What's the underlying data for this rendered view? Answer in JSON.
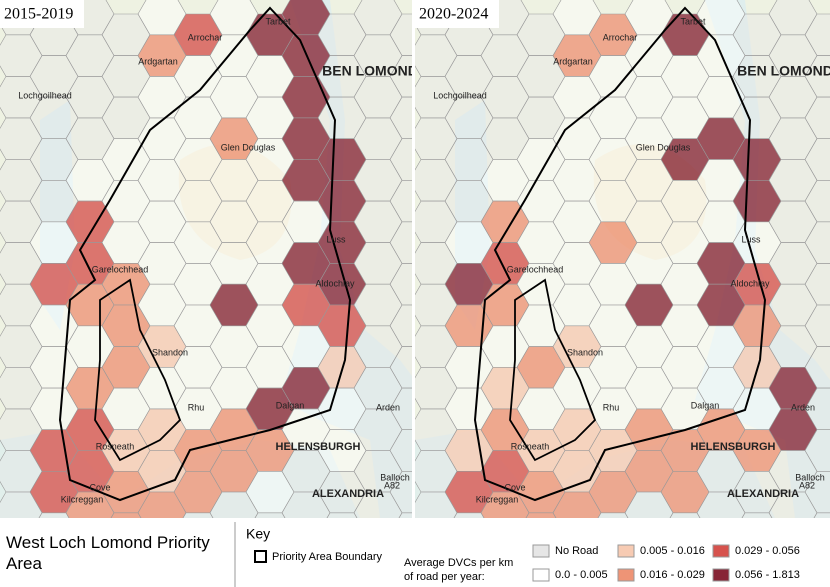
{
  "title": "West Loch Lomond Priority Area",
  "key": {
    "heading": "Key",
    "boundary_label": "Priority Area Boundary",
    "measure_label": "Average DVCs per km of road per year:",
    "classes": [
      {
        "label": "No Road",
        "color": "#e6e6e6"
      },
      {
        "label": "0.0 - 0.005",
        "color": "#ffffff"
      },
      {
        "label": "0.005 - 0.016",
        "color": "#f7cbb3"
      },
      {
        "label": "0.016 - 0.029",
        "color": "#ee9476"
      },
      {
        "label": "0.029 - 0.056",
        "color": "#d6524d"
      },
      {
        "label": "0.056 - 1.813",
        "color": "#872536"
      }
    ]
  },
  "places": [
    "BEN LOMOND",
    "Tarbet",
    "Arrochar",
    "Ardgartan",
    "Lochgoilhead",
    "Glen Douglas",
    "Luss",
    "Garelochhead",
    "Aldochlay",
    "Shandon",
    "Rhu",
    "Dalgan",
    "Rosneath",
    "Cove",
    "Kilcreggan",
    "HELENSBURGH",
    "ALEXANDRIA",
    "Balloch",
    "Arden",
    "A82"
  ],
  "panels": [
    {
      "title": "2015-2019",
      "hexes": [
        [
          0,
          0,
          0,
          0,
          1,
          4,
          1,
          5,
          5,
          0,
          0,
          0
        ],
        [
          0,
          0,
          0,
          0,
          3,
          1,
          1,
          1,
          5,
          0,
          0,
          0
        ],
        [
          0,
          0,
          0,
          0,
          1,
          1,
          1,
          1,
          5,
          0,
          0,
          0
        ],
        [
          0,
          0,
          0,
          1,
          1,
          1,
          3,
          1,
          5,
          5,
          0,
          0
        ],
        [
          0,
          0,
          1,
          1,
          1,
          1,
          1,
          1,
          5,
          5,
          0,
          0
        ],
        [
          0,
          1,
          4,
          1,
          1,
          1,
          1,
          1,
          1,
          5,
          0,
          0
        ],
        [
          0,
          4,
          4,
          3,
          1,
          1,
          1,
          1,
          5,
          5,
          0,
          0
        ],
        [
          0,
          1,
          3,
          3,
          1,
          1,
          5,
          1,
          4,
          4,
          0,
          0
        ],
        [
          0,
          1,
          1,
          3,
          2,
          1,
          1,
          1,
          1,
          2,
          0,
          0
        ],
        [
          0,
          1,
          3,
          1,
          1,
          1,
          1,
          5,
          5,
          1,
          0,
          0
        ],
        [
          0,
          4,
          4,
          2,
          2,
          3,
          3,
          3,
          1,
          1,
          0,
          0
        ],
        [
          0,
          4,
          4,
          3,
          2,
          3,
          3,
          1,
          0,
          0,
          0,
          0
        ],
        [
          0,
          0,
          3,
          3,
          3,
          0,
          0,
          0,
          0,
          0,
          0,
          0
        ]
      ]
    },
    {
      "title": "2020-2024",
      "hexes": [
        [
          0,
          0,
          0,
          0,
          1,
          3,
          1,
          5,
          1,
          0,
          0,
          0
        ],
        [
          0,
          0,
          0,
          0,
          3,
          1,
          1,
          1,
          1,
          0,
          0,
          0
        ],
        [
          0,
          0,
          0,
          0,
          1,
          1,
          1,
          1,
          1,
          0,
          0,
          0
        ],
        [
          0,
          0,
          0,
          1,
          1,
          1,
          1,
          5,
          5,
          5,
          0,
          0
        ],
        [
          0,
          0,
          1,
          1,
          1,
          1,
          1,
          1,
          1,
          5,
          0,
          0
        ],
        [
          0,
          1,
          3,
          1,
          1,
          3,
          1,
          1,
          1,
          1,
          0,
          0
        ],
        [
          0,
          5,
          4,
          1,
          1,
          1,
          1,
          1,
          5,
          4,
          0,
          0
        ],
        [
          0,
          3,
          3,
          1,
          1,
          1,
          5,
          1,
          5,
          3,
          0,
          0
        ],
        [
          0,
          1,
          1,
          3,
          2,
          1,
          1,
          1,
          1,
          2,
          0,
          0
        ],
        [
          0,
          1,
          2,
          1,
          1,
          1,
          1,
          1,
          1,
          1,
          5,
          0
        ],
        [
          0,
          2,
          3,
          2,
          2,
          2,
          3,
          3,
          3,
          3,
          5,
          0
        ],
        [
          0,
          4,
          4,
          3,
          2,
          3,
          3,
          3,
          0,
          0,
          0,
          0
        ],
        [
          0,
          0,
          3,
          3,
          3,
          0,
          0,
          0,
          0,
          0,
          0,
          0
        ]
      ]
    }
  ]
}
